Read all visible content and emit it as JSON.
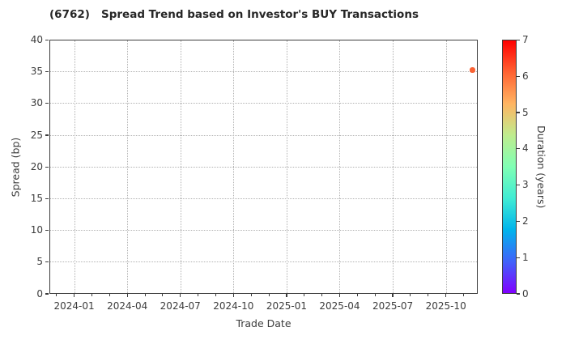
{
  "title": "(6762)   Spread Trend based on Investor's BUY Transactions",
  "chart_data": {
    "type": "scatter",
    "title": "(6762)   Spread Trend based on Investor's BUY Transactions",
    "xlabel": "Trade Date",
    "ylabel": "Spread (bp)",
    "ylim": [
      0,
      40
    ],
    "y_ticks": [
      0,
      5,
      10,
      15,
      20,
      25,
      30,
      35,
      40
    ],
    "x_ticks": [
      {
        "label": "2024-01",
        "m": 0
      },
      {
        "label": "2024-04",
        "m": 3
      },
      {
        "label": "2024-07",
        "m": 6
      },
      {
        "label": "2024-10",
        "m": 9
      },
      {
        "label": "2025-01",
        "m": 12
      },
      {
        "label": "2025-04",
        "m": 15
      },
      {
        "label": "2025-07",
        "m": 18
      },
      {
        "label": "2025-10",
        "m": 21
      }
    ],
    "xlim_months": [
      -1.4,
      22.8
    ],
    "grid": "dotted",
    "legend": "none",
    "points": [
      {
        "date": "2025-11",
        "m": 22.5,
        "spread": 35.3,
        "duration": 6.1,
        "color": "#fb6334"
      }
    ],
    "colorbar": {
      "label": "Duration (years)",
      "min": 0,
      "max": 7,
      "ticks": [
        0,
        1,
        2,
        3,
        4,
        5,
        6,
        7
      ],
      "colormap": "rainbow",
      "stops": [
        {
          "pos": 0.0,
          "color": "#8000ff"
        },
        {
          "pos": 0.125,
          "color": "#4062fa"
        },
        {
          "pos": 0.25,
          "color": "#00b4ec"
        },
        {
          "pos": 0.375,
          "color": "#40ecd4"
        },
        {
          "pos": 0.5,
          "color": "#80ffb4"
        },
        {
          "pos": 0.625,
          "color": "#bfec8e"
        },
        {
          "pos": 0.75,
          "color": "#ffb462"
        },
        {
          "pos": 0.875,
          "color": "#ff6232"
        },
        {
          "pos": 1.0,
          "color": "#ff0000"
        }
      ]
    },
    "colors": {
      "spine": "#3c3c3c",
      "grid": "#b2b2b2",
      "text": "#3c3c3c",
      "title_text": "#262626",
      "background": "#ffffff"
    }
  }
}
